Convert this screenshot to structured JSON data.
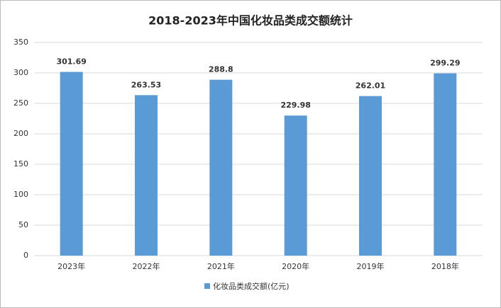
{
  "chart_data": {
    "type": "bar",
    "title": "2018-2023年中国化妆品类成交额统计",
    "categories": [
      "2023年",
      "2022年",
      "2021年",
      "2020年",
      "2019年",
      "2018年"
    ],
    "series": [
      {
        "name": "化妆品类成交额(亿元)",
        "color": "#5b9bd5",
        "values": [
          301.69,
          263.53,
          288.8,
          229.98,
          262.01,
          299.29
        ]
      }
    ],
    "ylim": [
      0,
      350
    ],
    "yticks": [
      0,
      50,
      100,
      150,
      200,
      250,
      300,
      350
    ],
    "grid": true,
    "legend": "bottom"
  }
}
